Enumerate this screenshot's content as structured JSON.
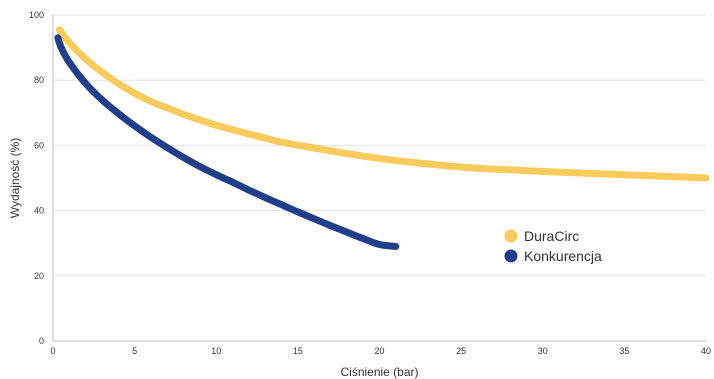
{
  "chart_data": {
    "type": "line",
    "xlabel": "Ciśnienie (bar)",
    "ylabel": "Wydajność (%)",
    "xlim": [
      0,
      40
    ],
    "ylim": [
      0,
      100
    ],
    "x_ticks": [
      0,
      5,
      10,
      15,
      20,
      25,
      30,
      35,
      40
    ],
    "y_ticks": [
      0,
      20,
      40,
      60,
      80,
      100
    ],
    "grid": "horizontal",
    "legend_position": "center-right",
    "series": [
      {
        "name": "DuraCirc",
        "color": "#F9CB5C",
        "x": [
          0.4,
          1,
          2,
          3,
          4,
          5,
          6,
          7,
          8,
          9,
          10,
          12,
          14,
          16,
          18,
          20,
          22,
          24,
          26,
          28,
          30,
          32,
          34,
          36,
          38,
          40
        ],
        "y": [
          95.5,
          91.5,
          86.5,
          82.5,
          79,
          76,
          73.5,
          71.5,
          69.5,
          67.8,
          66.2,
          63.5,
          61,
          59.2,
          57.5,
          56,
          54.8,
          53.8,
          53,
          52.5,
          52,
          51.6,
          51.2,
          50.8,
          50.4,
          50
        ]
      },
      {
        "name": "Konkurencja",
        "color": "#1F3F8A",
        "x": [
          0.3,
          0.5,
          1,
          2,
          3,
          4,
          5,
          6,
          7,
          8,
          9,
          10,
          11,
          12,
          13,
          14,
          15,
          16,
          17,
          18,
          19,
          20,
          21
        ],
        "y": [
          93,
          90,
          85.5,
          79,
          74,
          69.8,
          66,
          62.5,
          59.3,
          56.3,
          53.5,
          51,
          48.7,
          46.3,
          44,
          41.8,
          39.6,
          37.5,
          35.4,
          33.4,
          31.4,
          29.6,
          29
        ]
      }
    ]
  }
}
